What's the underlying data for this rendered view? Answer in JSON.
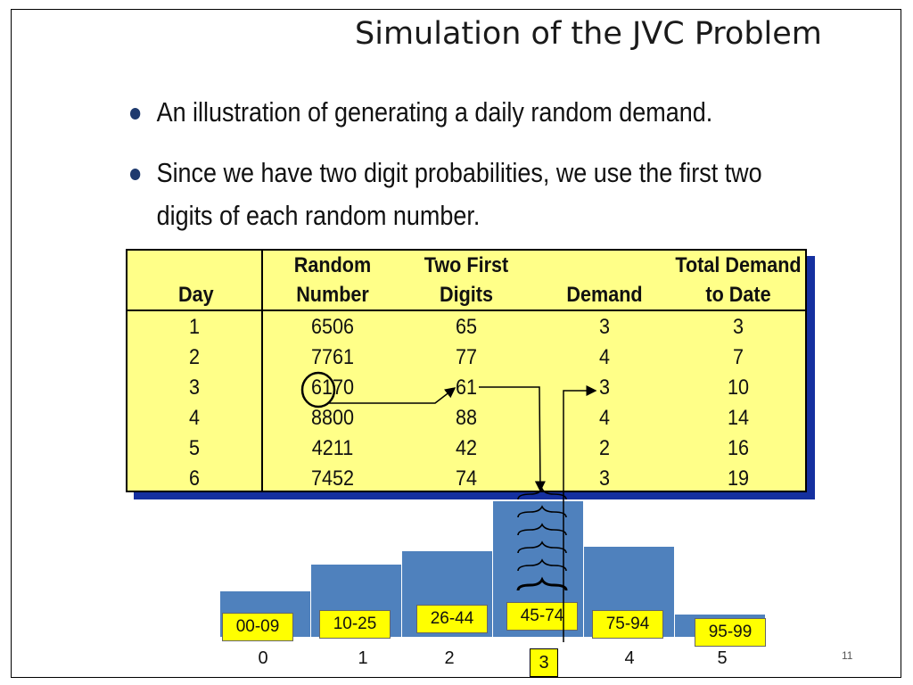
{
  "slide": {
    "title": "Simulation of the JVC Problem",
    "bullets": [
      "An illustration of generating a daily random demand.",
      "Since we have two digit probabilities, we use the first two",
      "digits of each random number."
    ],
    "page_number": "11"
  },
  "table": {
    "headers": {
      "day": "Day",
      "random_1": "Random",
      "random_2": "Number",
      "first_1": "Two First",
      "first_2": "Digits",
      "demand": "Demand",
      "total_1": "Total Demand",
      "total_2": "to Date"
    },
    "rows": [
      {
        "day": "1",
        "random": "6506",
        "digits": "65",
        "demand": "3",
        "total": "3"
      },
      {
        "day": "2",
        "random": "7761",
        "digits": "77",
        "demand": "4",
        "total": "7"
      },
      {
        "day": "3",
        "random": "6170",
        "digits": "61",
        "demand": "3",
        "total": "10"
      },
      {
        "day": "4",
        "random": "8800",
        "digits": "88",
        "demand": "4",
        "total": "14"
      },
      {
        "day": "5",
        "random": "4211",
        "digits": "42",
        "demand": "2",
        "total": "16"
      },
      {
        "day": "6",
        "random": "7452",
        "digits": "74",
        "demand": "3",
        "total": "19"
      }
    ]
  },
  "histogram": {
    "ranges": [
      "00-09",
      "10-25",
      "26-44",
      "45-74",
      "75-94",
      "95-99"
    ],
    "demands": [
      "0",
      "1",
      "2",
      "3",
      "4",
      "5"
    ],
    "probabilities": [
      0.1,
      0.16,
      0.19,
      0.3,
      0.2,
      0.05
    ],
    "selected_value": "3",
    "bar_color": "#4f81bd",
    "label_color": "#ffff00"
  },
  "colors": {
    "table_fill": "#ffff88",
    "table_shadow": "#1530a0",
    "bullet": "#1f3a6e"
  }
}
